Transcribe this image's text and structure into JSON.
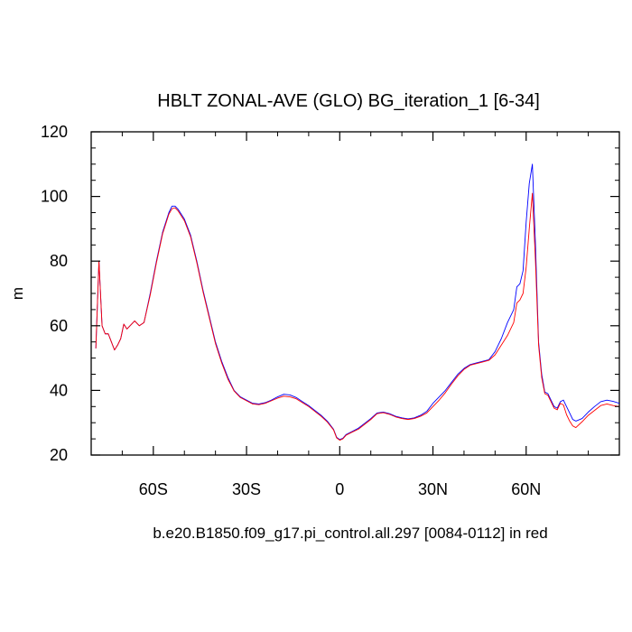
{
  "chart_data": {
    "type": "line",
    "title": "HBLT ZONAL-AVE (GLO) BG_iteration_1 [6-34]",
    "ylabel": "m",
    "xlabel": "b.e20.B1850.f09_g17.pi_control.all.297 [0084-0112] in red",
    "xlim": [
      -80,
      90
    ],
    "ylim": [
      20,
      120
    ],
    "x_ticks": [
      {
        "value": -60,
        "label": "60S"
      },
      {
        "value": -30,
        "label": "30S"
      },
      {
        "value": 0,
        "label": "0"
      },
      {
        "value": 30,
        "label": "30N"
      },
      {
        "value": 60,
        "label": "60N"
      }
    ],
    "y_ticks": [
      20,
      40,
      60,
      80,
      100,
      120
    ],
    "grid": false,
    "series": [
      {
        "color": "#0000ff",
        "points": [
          [
            -78.5,
            53
          ],
          [
            -77.5,
            80
          ],
          [
            -76.5,
            60
          ],
          [
            -75.5,
            57.5
          ],
          [
            -74.5,
            57.5
          ],
          [
            -73.5,
            55
          ],
          [
            -72.5,
            52.5
          ],
          [
            -71.5,
            54
          ],
          [
            -70.5,
            56
          ],
          [
            -69.5,
            60.5
          ],
          [
            -68.5,
            59
          ],
          [
            -67.5,
            60
          ],
          [
            -66,
            61.5
          ],
          [
            -64.5,
            60
          ],
          [
            -63,
            61
          ],
          [
            -61,
            70
          ],
          [
            -59,
            80
          ],
          [
            -57,
            89
          ],
          [
            -55,
            95
          ],
          [
            -54,
            97
          ],
          [
            -53,
            97
          ],
          [
            -52,
            96
          ],
          [
            -50,
            93
          ],
          [
            -48,
            88
          ],
          [
            -46,
            80
          ],
          [
            -44,
            71
          ],
          [
            -42,
            63
          ],
          [
            -40,
            55
          ],
          [
            -38,
            49
          ],
          [
            -36,
            44
          ],
          [
            -34,
            40
          ],
          [
            -32,
            38
          ],
          [
            -30,
            37
          ],
          [
            -28,
            36
          ],
          [
            -26,
            35.8
          ],
          [
            -24,
            36.2
          ],
          [
            -22,
            37
          ],
          [
            -20,
            38
          ],
          [
            -18,
            38.8
          ],
          [
            -16,
            38.6
          ],
          [
            -14,
            37.8
          ],
          [
            -12,
            36.5
          ],
          [
            -10,
            35.3
          ],
          [
            -8,
            33.8
          ],
          [
            -6,
            32.3
          ],
          [
            -4,
            30.5
          ],
          [
            -2,
            28
          ],
          [
            -1,
            25.5
          ],
          [
            0,
            24.8
          ],
          [
            1,
            25.2
          ],
          [
            2,
            26.3
          ],
          [
            4,
            27.3
          ],
          [
            6,
            28.3
          ],
          [
            8,
            29.8
          ],
          [
            10,
            31.3
          ],
          [
            12,
            33
          ],
          [
            14,
            33.3
          ],
          [
            16,
            32.8
          ],
          [
            18,
            32
          ],
          [
            20,
            31.5
          ],
          [
            22,
            31.2
          ],
          [
            24,
            31.5
          ],
          [
            26,
            32.3
          ],
          [
            28,
            33.5
          ],
          [
            30,
            36
          ],
          [
            32,
            38
          ],
          [
            34,
            40
          ],
          [
            36,
            42.5
          ],
          [
            38,
            45
          ],
          [
            40,
            46.8
          ],
          [
            42,
            48
          ],
          [
            44,
            48.5
          ],
          [
            46,
            49
          ],
          [
            48,
            49.5
          ],
          [
            50,
            52
          ],
          [
            52,
            56
          ],
          [
            54,
            61
          ],
          [
            56,
            65
          ],
          [
            57,
            72
          ],
          [
            58,
            73
          ],
          [
            59,
            77
          ],
          [
            60,
            92
          ],
          [
            61,
            104
          ],
          [
            62,
            110
          ],
          [
            63,
            85
          ],
          [
            64,
            55
          ],
          [
            65,
            45
          ],
          [
            66,
            39.5
          ],
          [
            67,
            39
          ],
          [
            68,
            37
          ],
          [
            69,
            35
          ],
          [
            70,
            34.5
          ],
          [
            71,
            36.5
          ],
          [
            72,
            37
          ],
          [
            73,
            35
          ],
          [
            74,
            33
          ],
          [
            75,
            31
          ],
          [
            76,
            30.5
          ],
          [
            78,
            31.3
          ],
          [
            80,
            33.3
          ],
          [
            82,
            35
          ],
          [
            84,
            36.5
          ],
          [
            86,
            37
          ],
          [
            88,
            36.6
          ],
          [
            90,
            36
          ]
        ]
      },
      {
        "color": "#ff0000",
        "points": [
          [
            -78.5,
            53
          ],
          [
            -77.5,
            80
          ],
          [
            -76.5,
            60
          ],
          [
            -75.5,
            57.5
          ],
          [
            -74.5,
            57.5
          ],
          [
            -73.5,
            55
          ],
          [
            -72.5,
            52.5
          ],
          [
            -71.5,
            54
          ],
          [
            -70.5,
            56
          ],
          [
            -69.5,
            60.5
          ],
          [
            -68.5,
            59
          ],
          [
            -67.5,
            60
          ],
          [
            -66,
            61.5
          ],
          [
            -64.5,
            60
          ],
          [
            -63,
            61
          ],
          [
            -61,
            69.5
          ],
          [
            -59,
            79.5
          ],
          [
            -57,
            88.5
          ],
          [
            -55,
            94.5
          ],
          [
            -54,
            96.2
          ],
          [
            -53,
            96.5
          ],
          [
            -52,
            95.5
          ],
          [
            -50,
            92.5
          ],
          [
            -48,
            87.5
          ],
          [
            -46,
            79.5
          ],
          [
            -44,
            70.5
          ],
          [
            -42,
            62.5
          ],
          [
            -40,
            54.5
          ],
          [
            -38,
            48.5
          ],
          [
            -36,
            43.5
          ],
          [
            -34,
            39.8
          ],
          [
            -32,
            37.8
          ],
          [
            -30,
            36.8
          ],
          [
            -28,
            35.8
          ],
          [
            -26,
            35.6
          ],
          [
            -24,
            36
          ],
          [
            -22,
            36.8
          ],
          [
            -20,
            37.6
          ],
          [
            -18,
            38.2
          ],
          [
            -16,
            38
          ],
          [
            -14,
            37.4
          ],
          [
            -12,
            36.2
          ],
          [
            -10,
            35
          ],
          [
            -8,
            33.5
          ],
          [
            -6,
            32
          ],
          [
            -4,
            30.2
          ],
          [
            -2,
            27.8
          ],
          [
            -1,
            25.3
          ],
          [
            0,
            24.6
          ],
          [
            1,
            25
          ],
          [
            2,
            26.1
          ],
          [
            4,
            27.1
          ],
          [
            6,
            28
          ],
          [
            8,
            29.5
          ],
          [
            10,
            31
          ],
          [
            12,
            32.8
          ],
          [
            14,
            33.1
          ],
          [
            16,
            32.6
          ],
          [
            18,
            31.8
          ],
          [
            20,
            31.3
          ],
          [
            22,
            31
          ],
          [
            24,
            31.3
          ],
          [
            26,
            32
          ],
          [
            28,
            33
          ],
          [
            30,
            35
          ],
          [
            32,
            37
          ],
          [
            34,
            39.3
          ],
          [
            36,
            42
          ],
          [
            38,
            44.5
          ],
          [
            40,
            46.5
          ],
          [
            42,
            47.8
          ],
          [
            44,
            48.3
          ],
          [
            46,
            48.8
          ],
          [
            48,
            49.3
          ],
          [
            50,
            51
          ],
          [
            52,
            54
          ],
          [
            54,
            57
          ],
          [
            56,
            61
          ],
          [
            57,
            67
          ],
          [
            58,
            68
          ],
          [
            59,
            70
          ],
          [
            60,
            78
          ],
          [
            61,
            90
          ],
          [
            62,
            101
          ],
          [
            63,
            80
          ],
          [
            64,
            54
          ],
          [
            65,
            44
          ],
          [
            66,
            39
          ],
          [
            67,
            38.5
          ],
          [
            68,
            36.5
          ],
          [
            69,
            34.5
          ],
          [
            70,
            34
          ],
          [
            71,
            36
          ],
          [
            72,
            35.5
          ],
          [
            73,
            32.5
          ],
          [
            74,
            30.5
          ],
          [
            75,
            29
          ],
          [
            76,
            28.5
          ],
          [
            78,
            30.3
          ],
          [
            80,
            32.3
          ],
          [
            82,
            33.8
          ],
          [
            84,
            35.3
          ],
          [
            86,
            35.8
          ],
          [
            88,
            35.3
          ],
          [
            90,
            35
          ]
        ]
      }
    ]
  }
}
